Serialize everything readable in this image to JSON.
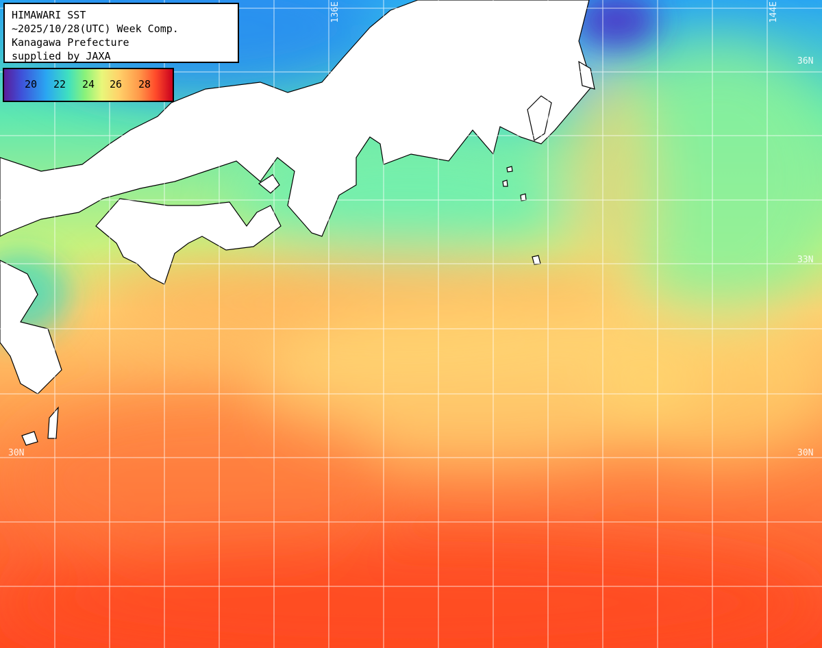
{
  "header": {
    "line1": "HIMAWARI SST",
    "line2": "~2025/10/28(UTC) Week Comp.",
    "line3": "Kanagawa Prefecture",
    "line4": "supplied by JAXA"
  },
  "legend": {
    "labels": [
      "20",
      "22",
      "24",
      "26",
      "28"
    ]
  },
  "grid_labels": {
    "lon_136": "136E",
    "lon_144": "144E",
    "lat_36": "36N",
    "lat_33": "33N",
    "lat_30_left": "30N",
    "lat_30_right": "30N"
  },
  "colors": {
    "cold": "#3f4fd8",
    "cool": "#2aa6f2",
    "mid": "#8af27a",
    "warm": "#ffd26a",
    "hot": "#ff4a2a",
    "land": "#ffffff",
    "grid": "#ffffff"
  }
}
